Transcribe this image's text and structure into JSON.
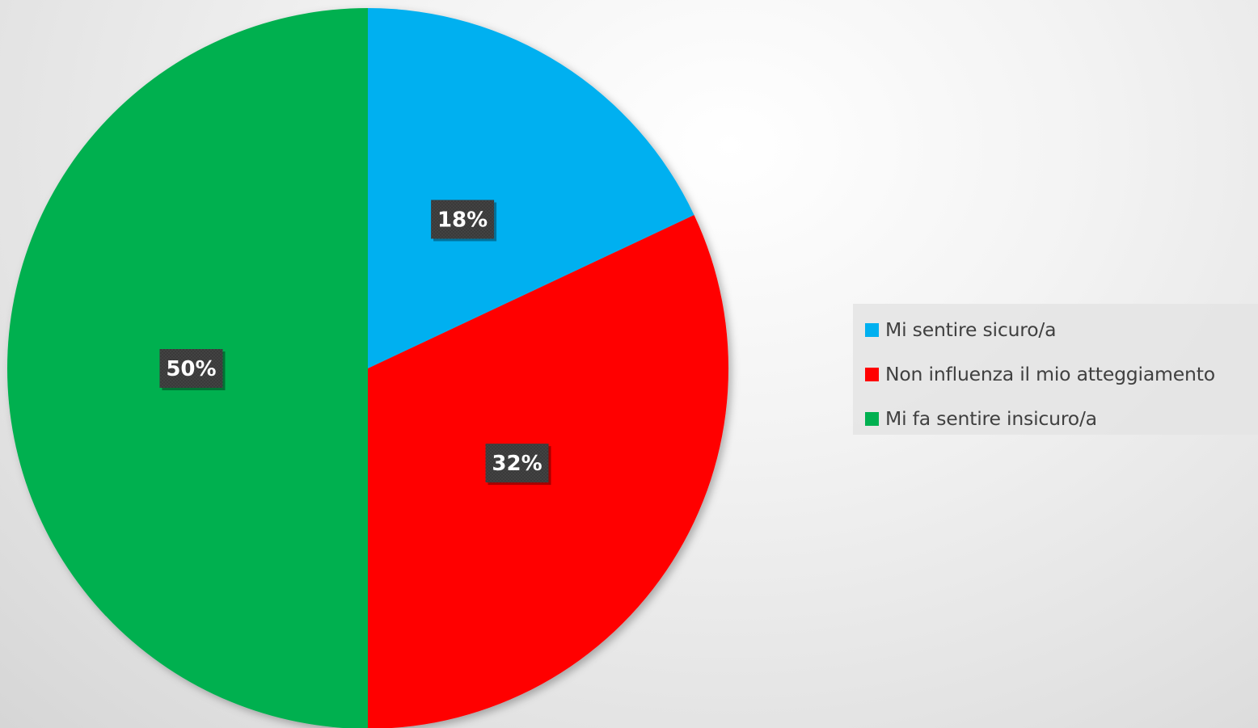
{
  "chart_data": {
    "type": "pie",
    "title": "",
    "categories": [
      "Mi sentire sicuro/a",
      "Non influenza il mio atteggiamento",
      "Mi fa sentire insicuro/a"
    ],
    "values": [
      18,
      32,
      50
    ],
    "labels": [
      "18%",
      "32%",
      "50%"
    ],
    "colors": [
      "#00b0f0",
      "#ff0000",
      "#00b050"
    ],
    "start_angle": "12 o'clock",
    "direction": "clockwise",
    "legend_position": "right"
  }
}
